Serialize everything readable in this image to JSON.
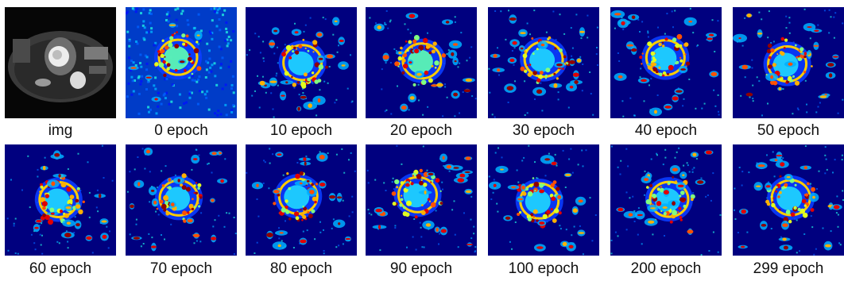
{
  "figure": {
    "items": [
      {
        "label": "img",
        "kind": "mri"
      },
      {
        "label": "0 epoch",
        "kind": "heat"
      },
      {
        "label": "10 epoch",
        "kind": "heat"
      },
      {
        "label": "20 epoch",
        "kind": "heat"
      },
      {
        "label": "30 epoch",
        "kind": "heat"
      },
      {
        "label": "40 epoch",
        "kind": "heat"
      },
      {
        "label": "50 epoch",
        "kind": "heat"
      },
      {
        "label": "60 epoch",
        "kind": "heat"
      },
      {
        "label": "70 epoch",
        "kind": "heat"
      },
      {
        "label": "80 epoch",
        "kind": "heat"
      },
      {
        "label": "90 epoch",
        "kind": "heat"
      },
      {
        "label": "100 epoch",
        "kind": "heat"
      },
      {
        "label": "200 epoch",
        "kind": "heat"
      },
      {
        "label": "299 epoch",
        "kind": "heat"
      }
    ],
    "colormap": "jet",
    "colors": {
      "background_low": "#00007f",
      "mid": "#00c8ff",
      "high": "#ff2000"
    }
  }
}
